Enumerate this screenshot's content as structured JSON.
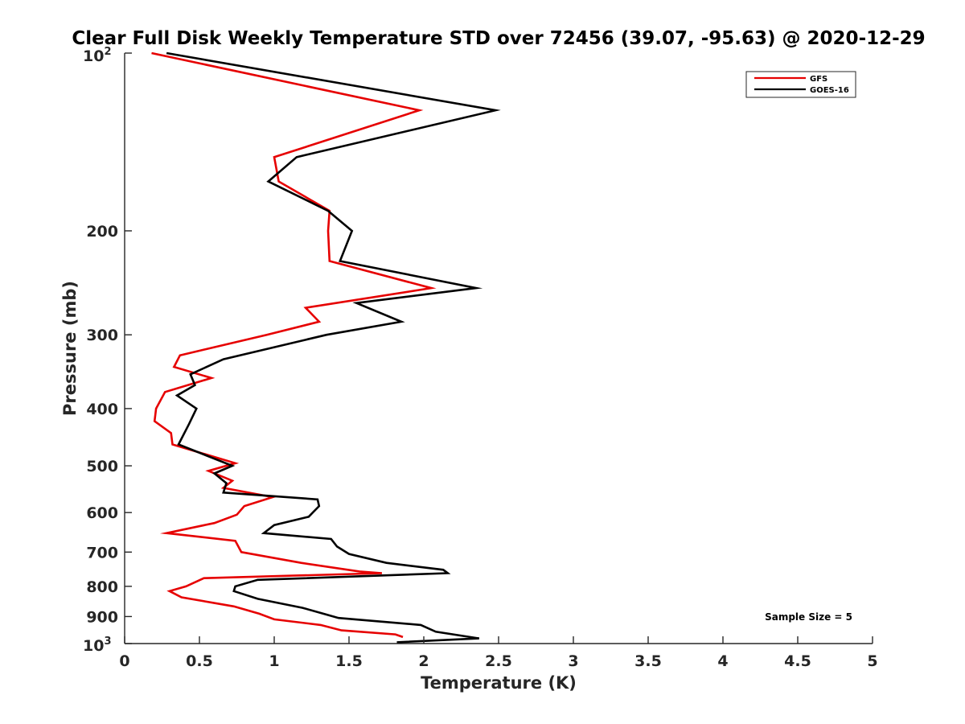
{
  "chart_data": {
    "type": "line",
    "title": "Clear Full Disk Weekly Temperature STD over 72456 (39.07, -95.63) @ 2020-12-29",
    "xlabel": "Temperature (K)",
    "ylabel": "Pressure (mb)",
    "xlim": [
      0,
      5
    ],
    "ylim": [
      100,
      1000
    ],
    "yscale": "log",
    "y_reversed": true,
    "grid": false,
    "x_ticks": [
      0,
      0.5,
      1,
      1.5,
      2,
      2.5,
      3,
      3.5,
      4,
      4.5,
      5
    ],
    "x_tick_labels": [
      "0",
      "0.5",
      "1",
      "1.5",
      "2",
      "2.5",
      "3",
      "3.5",
      "4",
      "4.5",
      "5"
    ],
    "y_ticks": [
      200,
      300,
      400,
      500,
      600,
      700,
      800,
      900
    ],
    "y_tick_labels": [
      "200",
      "300",
      "400",
      "500",
      "600",
      "700",
      "800",
      "900"
    ],
    "y_edge_labels": [
      {
        "value": 100,
        "base": "10",
        "exp": "2"
      },
      {
        "value": 1000,
        "base": "10",
        "exp": "3"
      }
    ],
    "legend_position": "top-right",
    "annotation": "Sample Size = 5",
    "series": [
      {
        "name": "GFS",
        "color": "#e60000",
        "points": [
          [
            0.18,
            100
          ],
          [
            1.97,
            125
          ],
          [
            1.0,
            150
          ],
          [
            1.03,
            165
          ],
          [
            1.37,
            185
          ],
          [
            1.36,
            200
          ],
          [
            1.37,
            225
          ],
          [
            2.05,
            250
          ],
          [
            1.21,
            270
          ],
          [
            1.3,
            285
          ],
          [
            0.95,
            300
          ],
          [
            0.37,
            325
          ],
          [
            0.33,
            340
          ],
          [
            0.58,
            355
          ],
          [
            0.27,
            375
          ],
          [
            0.21,
            400
          ],
          [
            0.2,
            420
          ],
          [
            0.31,
            440
          ],
          [
            0.32,
            460
          ],
          [
            0.74,
            495
          ],
          [
            0.56,
            510
          ],
          [
            0.72,
            530
          ],
          [
            0.66,
            545
          ],
          [
            0.99,
            565
          ],
          [
            0.8,
            585
          ],
          [
            0.75,
            605
          ],
          [
            0.6,
            625
          ],
          [
            0.28,
            650
          ],
          [
            0.74,
            670
          ],
          [
            0.78,
            700
          ],
          [
            1.18,
            730
          ],
          [
            1.57,
            755
          ],
          [
            1.72,
            760
          ],
          [
            0.53,
            775
          ],
          [
            0.41,
            800
          ],
          [
            0.3,
            815
          ],
          [
            0.38,
            835
          ],
          [
            0.73,
            865
          ],
          [
            0.9,
            890
          ],
          [
            1.0,
            910
          ],
          [
            1.31,
            930
          ],
          [
            1.45,
            950
          ],
          [
            1.81,
            965
          ],
          [
            1.86,
            975
          ]
        ]
      },
      {
        "name": "GOES-16",
        "color": "#000000",
        "points": [
          [
            0.28,
            100
          ],
          [
            2.48,
            125
          ],
          [
            1.15,
            150
          ],
          [
            0.96,
            165
          ],
          [
            1.36,
            185
          ],
          [
            1.52,
            200
          ],
          [
            1.44,
            225
          ],
          [
            2.35,
            250
          ],
          [
            1.55,
            265
          ],
          [
            1.85,
            285
          ],
          [
            1.35,
            300
          ],
          [
            0.66,
            330
          ],
          [
            0.44,
            350
          ],
          [
            0.47,
            365
          ],
          [
            0.35,
            380
          ],
          [
            0.48,
            400
          ],
          [
            0.43,
            425
          ],
          [
            0.36,
            460
          ],
          [
            0.72,
            500
          ],
          [
            0.6,
            515
          ],
          [
            0.68,
            535
          ],
          [
            0.66,
            555
          ],
          [
            1.29,
            570
          ],
          [
            1.3,
            585
          ],
          [
            1.23,
            610
          ],
          [
            1.0,
            630
          ],
          [
            0.93,
            650
          ],
          [
            1.38,
            665
          ],
          [
            1.42,
            685
          ],
          [
            1.5,
            705
          ],
          [
            1.75,
            730
          ],
          [
            2.13,
            750
          ],
          [
            2.16,
            760
          ],
          [
            0.89,
            780
          ],
          [
            0.74,
            800
          ],
          [
            0.73,
            815
          ],
          [
            0.89,
            840
          ],
          [
            1.19,
            870
          ],
          [
            1.43,
            905
          ],
          [
            1.98,
            930
          ],
          [
            2.08,
            955
          ],
          [
            2.37,
            980
          ],
          [
            1.82,
            995
          ]
        ]
      }
    ]
  }
}
